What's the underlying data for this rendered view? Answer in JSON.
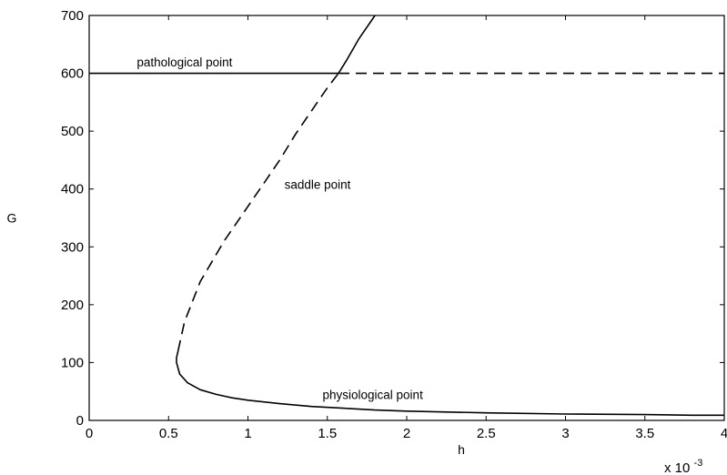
{
  "chart_data": {
    "type": "line",
    "title": "",
    "xlabel": "h",
    "ylabel": "G",
    "x_multiplier_label": "x 10",
    "x_multiplier_exponent": "-3",
    "xlim": [
      0,
      4
    ],
    "ylim": [
      0,
      700
    ],
    "x_ticks": [
      0,
      0.5,
      1,
      1.5,
      2,
      2.5,
      3,
      3.5,
      4
    ],
    "x_tick_labels": [
      "0",
      "0.5",
      "1",
      "1.5",
      "2",
      "2.5",
      "3",
      "3.5",
      "4"
    ],
    "y_ticks": [
      0,
      100,
      200,
      300,
      400,
      500,
      600,
      700
    ],
    "y_tick_labels": [
      "0",
      "100",
      "200",
      "300",
      "400",
      "500",
      "600",
      "700"
    ],
    "grid": false,
    "series": [
      {
        "style": "solid",
        "points": [
          [
            0,
            600
          ],
          [
            1.57,
            600
          ]
        ]
      },
      {
        "style": "dashed",
        "points": [
          [
            1.57,
            600
          ],
          [
            4,
            600
          ]
        ]
      },
      {
        "style": "solid",
        "points": [
          [
            1.57,
            600
          ],
          [
            1.62,
            622
          ],
          [
            1.7,
            660
          ],
          [
            1.8,
            700
          ]
        ]
      },
      {
        "style": "dashed",
        "points": [
          [
            0.56,
            120
          ],
          [
            0.6,
            170
          ],
          [
            0.7,
            240
          ],
          [
            0.85,
            310
          ],
          [
            1.0,
            370
          ],
          [
            1.1,
            410
          ],
          [
            1.2,
            450
          ],
          [
            1.3,
            495
          ],
          [
            1.4,
            535
          ],
          [
            1.5,
            575
          ],
          [
            1.57,
            600
          ]
        ]
      },
      {
        "style": "solid",
        "points": [
          [
            0.56,
            120
          ],
          [
            0.55,
            108
          ],
          [
            0.55,
            100
          ],
          [
            0.57,
            80
          ],
          [
            0.62,
            65
          ],
          [
            0.7,
            53
          ],
          [
            0.8,
            45
          ],
          [
            0.9,
            39
          ],
          [
            1.0,
            35
          ],
          [
            1.2,
            29
          ],
          [
            1.4,
            24
          ],
          [
            1.6,
            21
          ],
          [
            1.8,
            18
          ],
          [
            2.0,
            16
          ],
          [
            2.5,
            13
          ],
          [
            3.0,
            11
          ],
          [
            3.5,
            10
          ],
          [
            3.8,
            9
          ],
          [
            4.0,
            9
          ]
        ]
      }
    ],
    "annotations": [
      {
        "text": "pathological point",
        "x": 0.3,
        "y": 612
      },
      {
        "text": "saddle point",
        "x": 1.23,
        "y": 400
      },
      {
        "text": "physiological point",
        "x": 1.47,
        "y": 37
      }
    ]
  }
}
